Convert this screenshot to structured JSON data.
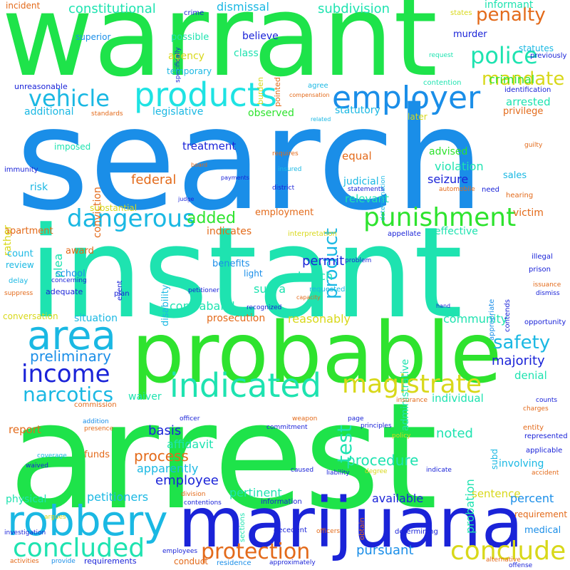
{
  "palette": {
    "green": "#1ee34a",
    "blue": "#1a8ee8",
    "teal": "#1ee3b0",
    "navy": "#1a23d8",
    "cyan": "#1ab8e3",
    "orange": "#e36a1a",
    "yellow": "#d8d81a",
    "lime": "#2ee32e"
  },
  "words": {
    "warrant": "warrant",
    "search": "search",
    "instant": "instant",
    "arrest": "arrest",
    "probable": "probable",
    "marijuana": "marijuana",
    "products": "products",
    "employer": "employer",
    "area": "area",
    "robbery": "robbery",
    "indicated": "indicated",
    "dangerous": "dangerous",
    "punishment": "punishment",
    "income": "income",
    "magistrate": "magistrate",
    "concluded": "concluded",
    "conclude": "conclude",
    "protection": "protection",
    "narcotics": "narcotics",
    "vehicle": "vehicle",
    "police": "police",
    "penalty": "penalty",
    "mandate": "mandate",
    "constitutional": "constitutional",
    "dismissal": "dismissal",
    "subdivision": "subdivision",
    "informant": "informant",
    "incident": "incident",
    "crime": "crime",
    "states": "states",
    "superior": "superior",
    "possible": "possible",
    "specifically": "specifically",
    "statutes": "statutes",
    "previously": "previously",
    "agency": "agency",
    "murder": "murder",
    "believe": "believe",
    "class": "class",
    "burden": "burden",
    "temporary": "temporary",
    "pointed": "pointed",
    "request": "request",
    "criminal": "criminal",
    "unreasonable": "unreasonable",
    "agree": "agree",
    "contention": "contention",
    "identification": "identification",
    "arrested": "arrested",
    "additional": "additional",
    "legislative": "legislative",
    "observed": "observed",
    "statutory": "statutory",
    "privilege": "privilege",
    "compensation": "compensation",
    "standards": "standards",
    "related": "related",
    "later": "later",
    "conviction": "conviction",
    "imposed": "imposed",
    "treatment": "treatment",
    "product": "product",
    "advised": "advised",
    "requires": "requires",
    "guilty": "guilty",
    "equal": "equal",
    "violation": "violation",
    "immunity": "immunity",
    "board": "board",
    "insured": "insured",
    "determination": "determination",
    "federal": "federal",
    "judicial": "judicial",
    "seizure": "seizure",
    "payments": "payments",
    "district": "district",
    "statements": "statements",
    "need": "need",
    "sales": "sales",
    "risk": "risk",
    "judge": "judge",
    "automobile": "automobile",
    "hearing": "hearing",
    "rather": "rather",
    "substantial": "substantial",
    "relevant": "relevant",
    "victim": "victim",
    "apartment": "apartment",
    "added": "added",
    "employment": "employment",
    "indicates": "indicates",
    "interpretation": "interpretation",
    "appellate": "appellate",
    "effective": "effective",
    "plea": "plea",
    "award": "award",
    "disability": "disability",
    "permit": "permit",
    "count": "count",
    "problem": "problem",
    "illegal": "illegal",
    "review": "review",
    "benefits": "benefits",
    "school": "school",
    "event": "event",
    "light": "light",
    "appropriate": "appropriate",
    "contends": "contends",
    "prison": "prison",
    "delay": "delay",
    "concerning": "concerning",
    "bench": "bench",
    "issuance": "issuance",
    "suppress": "suppress",
    "adequate": "adequate",
    "plan": "plan",
    "petitioner": "petitioner",
    "supra": "supra",
    "requested": "requested",
    "capacity": "capacity",
    "dismiss": "dismiss",
    "administrative": "administrative",
    "hand": "hand",
    "conversation": "conversation",
    "recognized": "recognized",
    "reasonably": "reasonably",
    "contraband": "contraband",
    "community": "community",
    "situation": "situation",
    "prosecution": "prosecution",
    "opportunity": "opportunity",
    "safety": "safety",
    "preliminary": "preliminary",
    "majority": "majority",
    "denial": "denial",
    "waiver": "waiver",
    "individual": "individual",
    "charges": "charges",
    "commission": "commission",
    "insurance": "insurance",
    "counts": "counts",
    "addition": "addition",
    "officer": "officer",
    "page": "page",
    "presence": "presence",
    "weapon": "weapon",
    "principles": "principles",
    "report": "report",
    "basis": "basis",
    "commitment": "commitment",
    "noted": "noted",
    "entity": "entity",
    "policy": "policy",
    "represented": "represented",
    "affidavit": "affidavit",
    "funds": "funds",
    "process": "process",
    "subd": "subd",
    "applicable": "applicable",
    "coverage": "coverage",
    "sections": "sections",
    "procedure": "procedure",
    "involving": "involving",
    "waived": "waived",
    "apparently": "apparently",
    "caused": "caused",
    "indicate": "indicate",
    "accident": "accident",
    "liability": "liability",
    "degree": "degree",
    "employee": "employee",
    "probation": "probation",
    "test": "test",
    "physical": "physical",
    "division": "division",
    "pertinent": "pertinent",
    "sentence": "sentence",
    "petitioners": "petitioners",
    "contentions": "contentions",
    "information": "information",
    "obtain": "obtain",
    "available": "available",
    "percent": "percent",
    "requirement": "requirement",
    "argues": "argues",
    "decedent": "decedent",
    "pursuant": "pursuant",
    "officers": "officers",
    "medical": "medical",
    "investigation": "investigation",
    "determining": "determining",
    "activities": "activities",
    "provide": "provide",
    "requirements": "requirements",
    "conduct": "conduct",
    "employees": "employees",
    "residence": "residence",
    "approximately": "approximately",
    "alternative": "alternative",
    "offense": "offense"
  }
}
